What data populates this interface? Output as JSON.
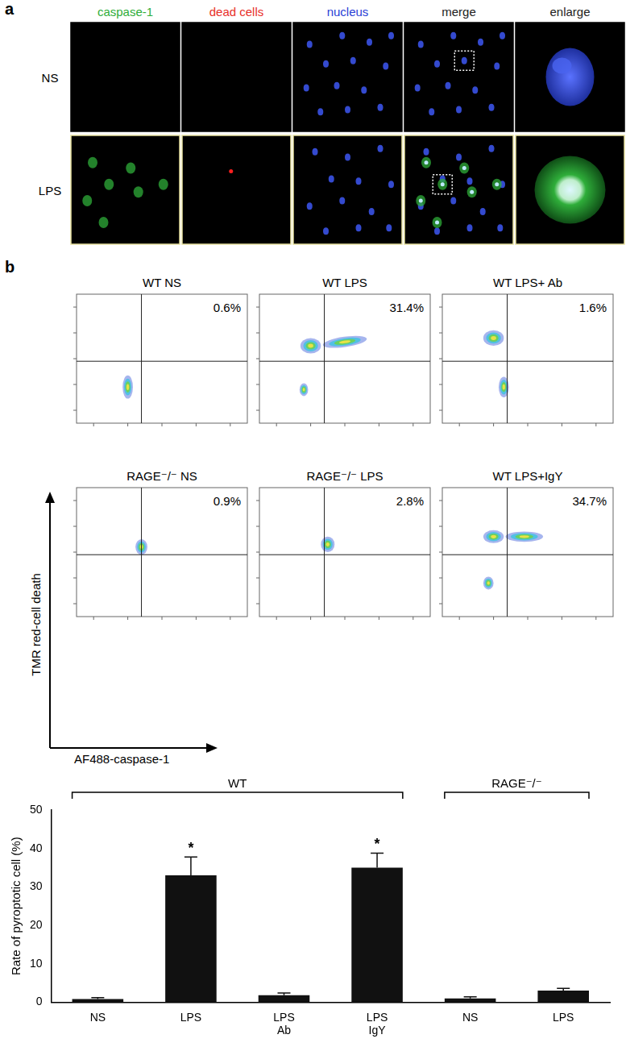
{
  "panel_a": {
    "label": "a",
    "columns": [
      {
        "text": "caspase-1",
        "color": "#2fae3a"
      },
      {
        "text": "dead cells",
        "color": "#e8302a"
      },
      {
        "text": "nucleus",
        "color": "#2a3fd6"
      },
      {
        "text": "merge",
        "color": "#222222"
      },
      {
        "text": "enlarge",
        "color": "#222222"
      }
    ],
    "rows": [
      "NS",
      "LPS"
    ]
  },
  "panel_b": {
    "label": "b",
    "y_label": "TMR red-cell death",
    "x_label": "AF488-caspase-1",
    "plots": [
      {
        "title": "WT NS",
        "percent": "0.6%"
      },
      {
        "title": "WT LPS",
        "percent": "31.4%"
      },
      {
        "title": "WT LPS+ Ab",
        "percent": "1.6%"
      },
      {
        "title": "RAGE⁻/⁻ NS",
        "percent": "0.9%"
      },
      {
        "title": "RAGE⁻/⁻ LPS",
        "percent": "2.8%"
      },
      {
        "title": "WT LPS+IgY",
        "percent": "34.7%"
      }
    ]
  },
  "chart_data": {
    "type": "bar",
    "y_label": "Rate of pyroptotic cell (%)",
    "categories": [
      "NS",
      "LPS",
      "LPS\nAb",
      "LPS\nIgY",
      "NS",
      "LPS"
    ],
    "values": [
      0.8,
      33,
      1.8,
      35,
      1.0,
      3.0
    ],
    "errors": [
      0.4,
      4.8,
      0.6,
      3.8,
      0.4,
      0.6
    ],
    "significance": [
      null,
      "*",
      null,
      "*",
      null,
      null
    ],
    "groups": [
      {
        "label": "WT",
        "count": 4
      },
      {
        "label": "RAGE⁻/⁻",
        "count": 2
      }
    ],
    "color": "#111111",
    "ylim": [
      0,
      50
    ],
    "yticks": [
      0,
      10,
      20,
      30,
      40,
      50
    ],
    "grid": false
  }
}
